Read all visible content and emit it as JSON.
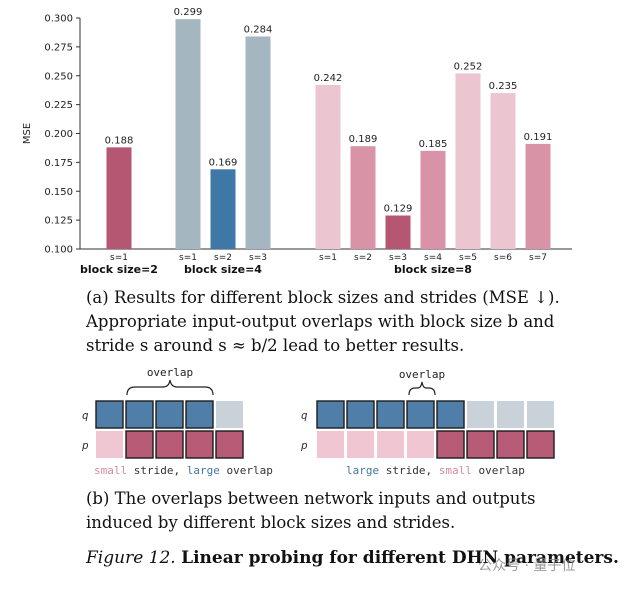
{
  "chart_data": {
    "type": "bar",
    "ylabel": "MSE",
    "ylim": [
      0.1,
      0.3
    ],
    "yticks": [
      "0.100",
      "0.125",
      "0.150",
      "0.175",
      "0.200",
      "0.225",
      "0.250",
      "0.275",
      "0.300"
    ],
    "groups": [
      {
        "label": "block size=2",
        "bars": [
          {
            "category": "s=1",
            "value": 0.188,
            "value_label": "0.188",
            "color": "#b55673"
          }
        ]
      },
      {
        "label": "block size=4",
        "bars": [
          {
            "category": "s=1",
            "value": 0.299,
            "value_label": "0.299",
            "color": "#a4b6bf"
          },
          {
            "category": "s=2",
            "value": 0.169,
            "value_label": "0.169",
            "color": "#3f78a6"
          },
          {
            "category": "s=3",
            "value": 0.284,
            "value_label": "0.284",
            "color": "#a4b6bf"
          }
        ]
      },
      {
        "label": "block size=8",
        "bars": [
          {
            "category": "s=1",
            "value": 0.242,
            "value_label": "0.242",
            "color": "#ebc5d0"
          },
          {
            "category": "s=2",
            "value": 0.189,
            "value_label": "0.189",
            "color": "#d893a7"
          },
          {
            "category": "s=3",
            "value": 0.129,
            "value_label": "0.129",
            "color": "#b55673"
          },
          {
            "category": "s=4",
            "value": 0.185,
            "value_label": "0.185",
            "color": "#d893a7"
          },
          {
            "category": "s=5",
            "value": 0.252,
            "value_label": "0.252",
            "color": "#ebc5d0"
          },
          {
            "category": "s=6",
            "value": 0.235,
            "value_label": "0.235",
            "color": "#ebc5d0"
          },
          {
            "category": "s=7",
            "value": 0.191,
            "value_label": "0.191",
            "color": "#d893a7"
          }
        ]
      }
    ]
  },
  "caption_a": "(a) Results for different block sizes and strides (MSE ↓). Appropriate input-output overlaps with block size b and stride s around s ≈ b/2 lead to better results.",
  "diagram": {
    "overlap_label_left": "overlap",
    "overlap_label_right": "overlap",
    "row_label_q": "q",
    "row_label_p": "p",
    "left": {
      "q_cells": [
        "blue",
        "blue",
        "blue",
        "blue",
        "gray"
      ],
      "p_cells": [
        "pink",
        "red",
        "red",
        "red",
        "red"
      ]
    },
    "right": {
      "q_cells": [
        "blue",
        "blue",
        "blue",
        "blue",
        "blue",
        "gray",
        "gray",
        "gray"
      ],
      "p_cells": [
        "pink",
        "pink",
        "pink",
        "pink",
        "red",
        "red",
        "red",
        "red"
      ]
    },
    "colors": {
      "blue": "#4f7fa8",
      "gray": "#c9d2d8",
      "pink": "#efc6d2",
      "red": "#b75b77"
    },
    "legend_left": {
      "w1": "small",
      "t1": " stride, ",
      "w2": "large",
      "t2": " overlap"
    },
    "legend_right": {
      "w1": "large",
      "t1": " stride, ",
      "w2": "small",
      "t2": " overlap"
    }
  },
  "caption_b": "(b) The overlaps between network inputs and outputs induced by different block sizes and strides.",
  "figure_caption": {
    "label": "Figure 12.",
    "title": "Linear probing for different DHN parameters."
  },
  "watermark": "公众号 · 量子位"
}
